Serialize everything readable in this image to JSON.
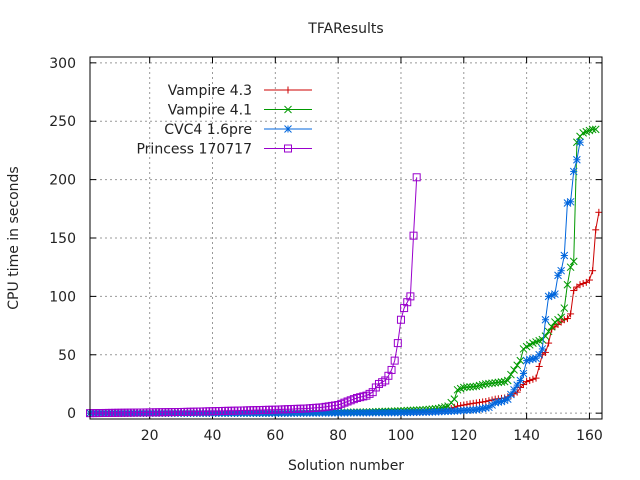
{
  "chart_data": {
    "type": "line",
    "title": "TFAResults",
    "xlabel": "Solution number",
    "ylabel": "CPU time in seconds",
    "xlim": [
      1,
      164
    ],
    "ylim": [
      -5,
      305
    ],
    "xticks": [
      20,
      40,
      60,
      80,
      100,
      120,
      140,
      160
    ],
    "yticks": [
      0,
      50,
      100,
      150,
      200,
      250,
      300
    ],
    "grid": true,
    "legend_position": "top-left",
    "series": [
      {
        "name": "Vampire 4.3",
        "color": "#cc0000",
        "marker": "plus",
        "points": [
          [
            1,
            0
          ],
          [
            60,
            0
          ],
          [
            100,
            0.5
          ],
          [
            110,
            1
          ],
          [
            115,
            3
          ],
          [
            118,
            6
          ],
          [
            122,
            8
          ],
          [
            127,
            10
          ],
          [
            130,
            12
          ],
          [
            133,
            13
          ],
          [
            135,
            15
          ],
          [
            137,
            18
          ],
          [
            138,
            22
          ],
          [
            140,
            27
          ],
          [
            142,
            29
          ],
          [
            143,
            30
          ],
          [
            144,
            40
          ],
          [
            145,
            50
          ],
          [
            146,
            52
          ],
          [
            147,
            60
          ],
          [
            148,
            72
          ],
          [
            149,
            74
          ],
          [
            150,
            76
          ],
          [
            151,
            78
          ],
          [
            152,
            80
          ],
          [
            153,
            81
          ],
          [
            154,
            85
          ],
          [
            155,
            105
          ],
          [
            156,
            108
          ],
          [
            157,
            110
          ],
          [
            158,
            111
          ],
          [
            159,
            112
          ],
          [
            160,
            114
          ],
          [
            161,
            122
          ],
          [
            162,
            157
          ],
          [
            163,
            172
          ]
        ]
      },
      {
        "name": "Vampire 4.1",
        "color": "#009900",
        "marker": "x",
        "points": [
          [
            1,
            0
          ],
          [
            60,
            0
          ],
          [
            90,
            1
          ],
          [
            100,
            2
          ],
          [
            108,
            3
          ],
          [
            112,
            4
          ],
          [
            115,
            6
          ],
          [
            116,
            9
          ],
          [
            117,
            12
          ],
          [
            118,
            20
          ],
          [
            120,
            22
          ],
          [
            124,
            23
          ],
          [
            127,
            25
          ],
          [
            130,
            26
          ],
          [
            133,
            27
          ],
          [
            134,
            28
          ],
          [
            135,
            33
          ],
          [
            136,
            37
          ],
          [
            138,
            45
          ],
          [
            139,
            55
          ],
          [
            140,
            57
          ],
          [
            142,
            60
          ],
          [
            144,
            62
          ],
          [
            145,
            63
          ],
          [
            146,
            66
          ],
          [
            147,
            70
          ],
          [
            148,
            74
          ],
          [
            149,
            78
          ],
          [
            150,
            80
          ],
          [
            151,
            82
          ],
          [
            152,
            90
          ],
          [
            153,
            110
          ],
          [
            154,
            125
          ],
          [
            155,
            130
          ],
          [
            156,
            232
          ],
          [
            157,
            237
          ],
          [
            158,
            240
          ],
          [
            159,
            241
          ],
          [
            160,
            242
          ],
          [
            161,
            243
          ],
          [
            162,
            243
          ]
        ]
      },
      {
        "name": "CVC4 1.6pre",
        "color": "#0066dd",
        "marker": "star",
        "points": [
          [
            1,
            0
          ],
          [
            60,
            0
          ],
          [
            100,
            0.5
          ],
          [
            110,
            1
          ],
          [
            118,
            2
          ],
          [
            124,
            3
          ],
          [
            128,
            5
          ],
          [
            130,
            9
          ],
          [
            132,
            10
          ],
          [
            134,
            12
          ],
          [
            136,
            20
          ],
          [
            138,
            28
          ],
          [
            139,
            34
          ],
          [
            140,
            45
          ],
          [
            141,
            46
          ],
          [
            143,
            47
          ],
          [
            144,
            50
          ],
          [
            145,
            55
          ],
          [
            146,
            80
          ],
          [
            147,
            100
          ],
          [
            148,
            101
          ],
          [
            149,
            102
          ],
          [
            150,
            118
          ],
          [
            151,
            122
          ],
          [
            152,
            135
          ],
          [
            153,
            180
          ],
          [
            154,
            181
          ],
          [
            155,
            207
          ],
          [
            156,
            217
          ],
          [
            157,
            232
          ]
        ]
      },
      {
        "name": "Princess 170717",
        "color": "#9900cc",
        "marker": "square",
        "points": [
          [
            1,
            0
          ],
          [
            30,
            1
          ],
          [
            45,
            2
          ],
          [
            60,
            3
          ],
          [
            70,
            4
          ],
          [
            75,
            5
          ],
          [
            80,
            7
          ],
          [
            83,
            10
          ],
          [
            86,
            13
          ],
          [
            89,
            15
          ],
          [
            91,
            18
          ],
          [
            92,
            22
          ],
          [
            93,
            25
          ],
          [
            95,
            28
          ],
          [
            96,
            32
          ],
          [
            97,
            37
          ],
          [
            98,
            45
          ],
          [
            99,
            60
          ],
          [
            100,
            80
          ],
          [
            101,
            90
          ],
          [
            102,
            95
          ],
          [
            103,
            100
          ],
          [
            104,
            152
          ],
          [
            105,
            202
          ]
        ]
      }
    ]
  }
}
